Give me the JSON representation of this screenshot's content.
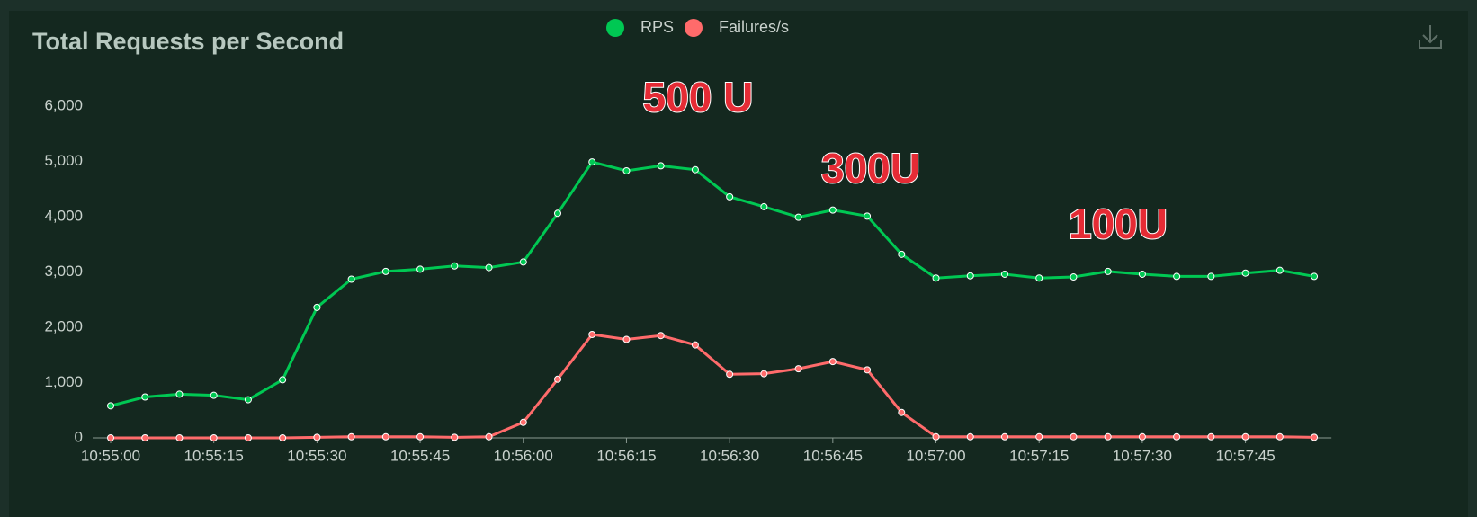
{
  "chart_data": {
    "type": "line",
    "title": "Total Requests per Second",
    "categories": [
      "10:55:00",
      null,
      null,
      "10:55:15",
      null,
      null,
      "10:55:30",
      null,
      null,
      "10:55:45",
      null,
      null,
      "10:56:00",
      null,
      null,
      "10:56:15",
      null,
      null,
      "10:56:30",
      null,
      null,
      "10:56:45",
      null,
      null,
      "10:57:00",
      null,
      null,
      "10:57:15",
      null,
      null,
      "10:57:30",
      null,
      null,
      "10:57:45",
      null,
      null
    ],
    "series": [
      {
        "name": "RPS",
        "color": "#00c853",
        "values": [
          580,
          740,
          790,
          770,
          690,
          1050,
          2360,
          2870,
          3010,
          3050,
          3110,
          3080,
          3180,
          4060,
          4990,
          4830,
          4920,
          4850,
          4360,
          4180,
          3990,
          4120,
          4010,
          3320,
          2890,
          2930,
          2960,
          2890,
          2910,
          3010,
          2960,
          2920,
          2920,
          2980,
          3030,
          2920
        ]
      },
      {
        "name": "Failures/s",
        "color": "#ff6b6b",
        "values": [
          0,
          0,
          0,
          0,
          0,
          0,
          10,
          20,
          20,
          20,
          10,
          20,
          280,
          1060,
          1870,
          1780,
          1850,
          1680,
          1150,
          1160,
          1250,
          1380,
          1230,
          460,
          20,
          20,
          20,
          20,
          20,
          20,
          20,
          20,
          20,
          20,
          20,
          10
        ]
      }
    ],
    "ylim": [
      0,
      6000
    ],
    "yticks": [
      0,
      {
        "value": 1000,
        "label": "1,000"
      },
      {
        "value": 2000,
        "label": "2,000"
      },
      {
        "value": 3000,
        "label": "3,000"
      },
      {
        "value": 4000,
        "label": "4,000"
      },
      {
        "value": 5000,
        "label": "5,000"
      },
      {
        "value": 6000,
        "label": "6,000"
      }
    ],
    "annotations": [
      "500 U",
      "300U",
      "100U"
    ]
  }
}
